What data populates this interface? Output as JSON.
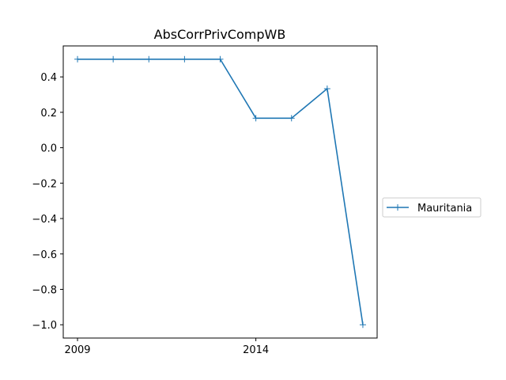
{
  "chart_data": {
    "type": "line",
    "title": "AbsCorrPrivCompWB",
    "xlabel": "",
    "ylabel": "",
    "x": [
      2009,
      2010,
      2011,
      2012,
      2013,
      2014,
      2015,
      2016,
      2017
    ],
    "x_ticks": [
      2009,
      2014
    ],
    "y_ticks": [
      "0.4",
      "0.2",
      "0.0",
      "−0.2",
      "−0.4",
      "−0.6",
      "−0.8",
      "−1.0"
    ],
    "y_tick_values": [
      0.4,
      0.2,
      0.0,
      -0.2,
      -0.4,
      -0.6,
      -0.8,
      -1.0
    ],
    "xlim": [
      2008.6,
      2017.4
    ],
    "ylim": [
      -1.075,
      0.575
    ],
    "grid": false,
    "legend_position": "outside-right",
    "series": [
      {
        "name": "Mauritania",
        "color": "#1f77b4",
        "marker": "plus",
        "values": [
          0.5,
          0.5,
          0.5,
          0.5,
          0.5,
          0.1667,
          0.1667,
          0.3333,
          -1.0
        ]
      }
    ]
  }
}
